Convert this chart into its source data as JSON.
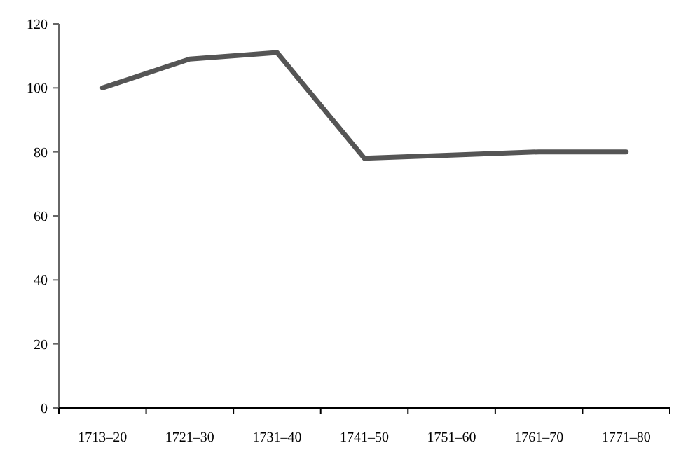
{
  "chart_data": {
    "type": "line",
    "categories": [
      "1713–20",
      "1721–30",
      "1731–40",
      "1741–50",
      "1751–60",
      "1761–70",
      "1771–80"
    ],
    "series": [
      {
        "color": "#555555",
        "values": [
          100,
          109,
          111,
          78,
          79,
          80,
          80
        ]
      }
    ],
    "ylim": [
      0,
      120
    ],
    "yticks": [
      0,
      20,
      40,
      60,
      80,
      100,
      120
    ],
    "grid": false,
    "marker": "none",
    "line_style": "solid"
  }
}
